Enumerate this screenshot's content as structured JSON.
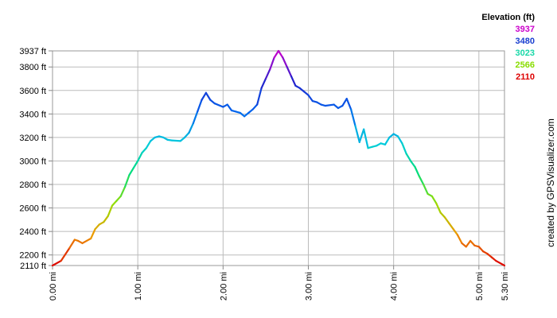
{
  "chart_data": {
    "type": "line",
    "title": "",
    "xlabel": "",
    "ylabel": "",
    "xlim": [
      0,
      5.3
    ],
    "ylim": [
      2110,
      3937
    ],
    "grid": true,
    "x_ticks": [
      "0.00 mi",
      "1.00 mi",
      "2.00 mi",
      "3.00 mi",
      "4.00 mi",
      "5.00 mi",
      "5.30 mi"
    ],
    "y_ticks": [
      "2110 ft",
      "2200 ft",
      "2400 ft",
      "2600 ft",
      "2800 ft",
      "3000 ft",
      "3200 ft",
      "3400 ft",
      "3600 ft",
      "3800 ft",
      "3937 ft"
    ],
    "legend": {
      "title": "Elevation (ft)",
      "placement": "top-right",
      "entries": [
        {
          "label": "3937",
          "color": "#cc00cc"
        },
        {
          "label": "3480",
          "color": "#1a3fd0"
        },
        {
          "label": "3023",
          "color": "#18d8a8"
        },
        {
          "label": "2566",
          "color": "#88dd00"
        },
        {
          "label": "2110",
          "color": "#dd0000"
        }
      ]
    },
    "credit": "created by GPSVisualizer.com",
    "color_scale": [
      "#dd0000",
      "#ee9900",
      "#99dd00",
      "#00dd77",
      "#00ccdd",
      "#0066ee",
      "#2222cc",
      "#cc00cc"
    ],
    "series": [
      {
        "x": [
          0.0,
          0.1,
          0.2,
          0.26,
          0.3,
          0.35,
          0.4,
          0.45,
          0.5,
          0.55,
          0.6,
          0.65,
          0.7,
          0.75,
          0.8,
          0.85,
          0.9,
          0.95,
          1.0,
          1.05,
          1.1,
          1.15,
          1.2,
          1.25,
          1.3,
          1.35,
          1.4,
          1.5,
          1.55,
          1.6,
          1.65,
          1.7,
          1.75,
          1.8,
          1.85,
          1.9,
          2.0,
          2.05,
          2.1,
          2.15,
          2.2,
          2.25,
          2.3,
          2.35,
          2.4,
          2.45,
          2.5,
          2.55,
          2.6,
          2.65,
          2.7,
          2.75,
          2.8,
          2.85,
          2.9,
          2.95,
          3.0,
          3.05,
          3.1,
          3.15,
          3.2,
          3.3,
          3.35,
          3.4,
          3.45,
          3.5,
          3.55,
          3.6,
          3.65,
          3.7,
          3.75,
          3.8,
          3.85,
          3.9,
          3.95,
          4.0,
          4.05,
          4.1,
          4.15,
          4.2,
          4.25,
          4.3,
          4.35,
          4.4,
          4.45,
          4.5,
          4.55,
          4.6,
          4.65,
          4.7,
          4.75,
          4.8,
          4.85,
          4.9,
          4.95,
          5.0,
          5.05,
          5.1,
          5.15,
          5.2,
          5.3
        ],
        "y": [
          2110,
          2150,
          2260,
          2330,
          2320,
          2300,
          2320,
          2340,
          2420,
          2460,
          2480,
          2530,
          2620,
          2660,
          2700,
          2780,
          2880,
          2940,
          3000,
          3070,
          3110,
          3170,
          3200,
          3210,
          3200,
          3180,
          3175,
          3170,
          3200,
          3240,
          3320,
          3420,
          3520,
          3580,
          3520,
          3490,
          3460,
          3480,
          3430,
          3420,
          3410,
          3380,
          3410,
          3440,
          3480,
          3620,
          3700,
          3780,
          3880,
          3937,
          3880,
          3800,
          3720,
          3640,
          3620,
          3590,
          3560,
          3510,
          3500,
          3480,
          3470,
          3480,
          3450,
          3470,
          3530,
          3440,
          3300,
          3160,
          3270,
          3110,
          3120,
          3130,
          3150,
          3140,
          3200,
          3230,
          3210,
          3150,
          3060,
          3000,
          2950,
          2870,
          2800,
          2720,
          2700,
          2640,
          2560,
          2520,
          2470,
          2420,
          2370,
          2300,
          2270,
          2320,
          2280,
          2270,
          2230,
          2210,
          2180,
          2150,
          2110
        ]
      }
    ]
  }
}
